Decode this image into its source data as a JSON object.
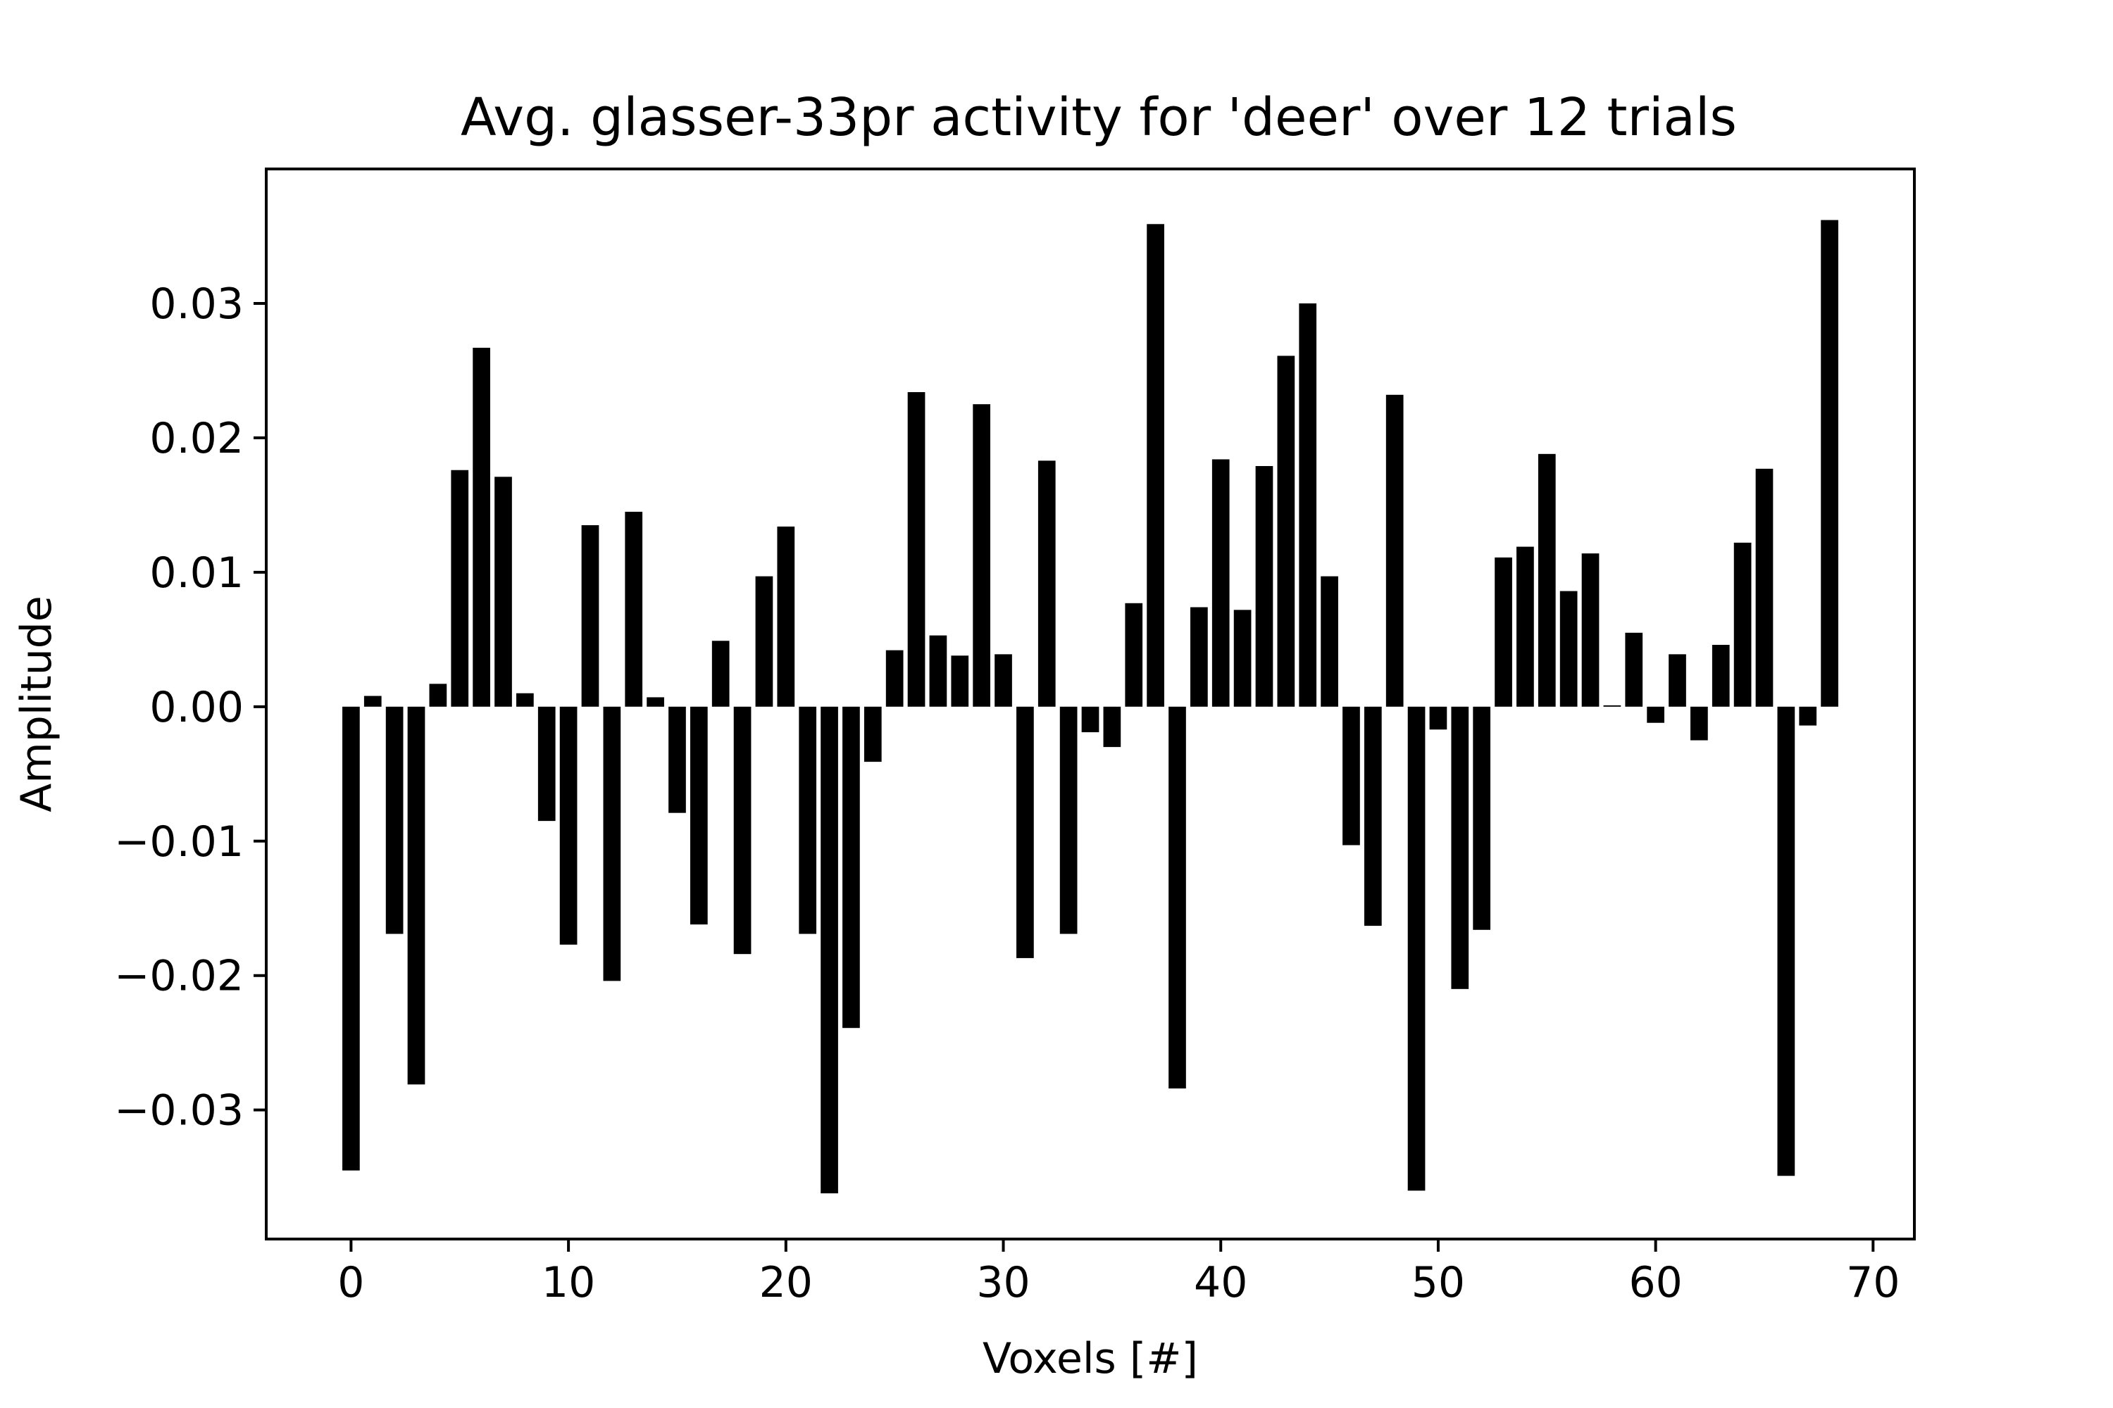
{
  "chart_data": {
    "type": "bar",
    "title": "Avg. glasser-33pr activity for 'deer' over 12 trials",
    "xlabel": "Voxels [#]",
    "ylabel": "Amplitude",
    "bar_color": "#000000",
    "xlim": [
      -3.9,
      71.9
    ],
    "ylim": [
      -0.0396,
      0.04
    ],
    "x_ticks": [
      0,
      10,
      20,
      30,
      40,
      50,
      60,
      70
    ],
    "x_tick_labels": [
      "0",
      "10",
      "20",
      "30",
      "40",
      "50",
      "60",
      "70"
    ],
    "y_ticks": [
      0.03,
      0.02,
      0.01,
      0.0,
      -0.01,
      -0.02,
      -0.03
    ],
    "y_tick_labels": [
      "0.03",
      "0.02",
      "0.01",
      "0.00",
      "−0.01",
      "−0.02",
      "−0.03"
    ],
    "grid": false,
    "x": [
      0,
      1,
      2,
      3,
      4,
      5,
      6,
      7,
      8,
      9,
      10,
      11,
      12,
      13,
      14,
      15,
      16,
      17,
      18,
      19,
      20,
      21,
      22,
      23,
      24,
      25,
      26,
      27,
      28,
      29,
      30,
      31,
      32,
      33,
      34,
      35,
      36,
      37,
      38,
      39,
      40,
      41,
      42,
      43,
      44,
      45,
      46,
      47,
      48,
      49,
      50,
      51,
      52,
      53,
      54,
      55,
      56,
      57,
      58,
      59,
      60,
      61,
      62,
      63,
      64,
      65,
      66,
      67,
      68
    ],
    "values": [
      -0.0345,
      0.0008,
      -0.0169,
      -0.0281,
      0.0017,
      0.0176,
      0.0267,
      0.0171,
      0.001,
      -0.0085,
      -0.0177,
      0.0135,
      -0.0204,
      0.0145,
      0.0007,
      -0.0079,
      -0.0162,
      0.0049,
      -0.0184,
      0.0097,
      0.0134,
      -0.0169,
      -0.0362,
      -0.0239,
      -0.0041,
      0.0042,
      0.0234,
      0.0053,
      0.0038,
      0.0225,
      0.0039,
      -0.0187,
      0.0183,
      -0.0169,
      -0.0019,
      -0.003,
      0.0077,
      0.0359,
      -0.0284,
      0.0074,
      0.0184,
      0.0072,
      0.0179,
      0.0261,
      0.03,
      0.0097,
      -0.0103,
      -0.0163,
      0.0232,
      -0.036,
      -0.0017,
      -0.021,
      -0.0166,
      0.0111,
      0.0119,
      0.0188,
      0.0086,
      0.0114,
      0.0001,
      0.0055,
      -0.0012,
      0.0039,
      -0.0025,
      0.0046,
      0.0122,
      0.0177,
      -0.0349,
      -0.0014,
      0.0362
    ]
  }
}
